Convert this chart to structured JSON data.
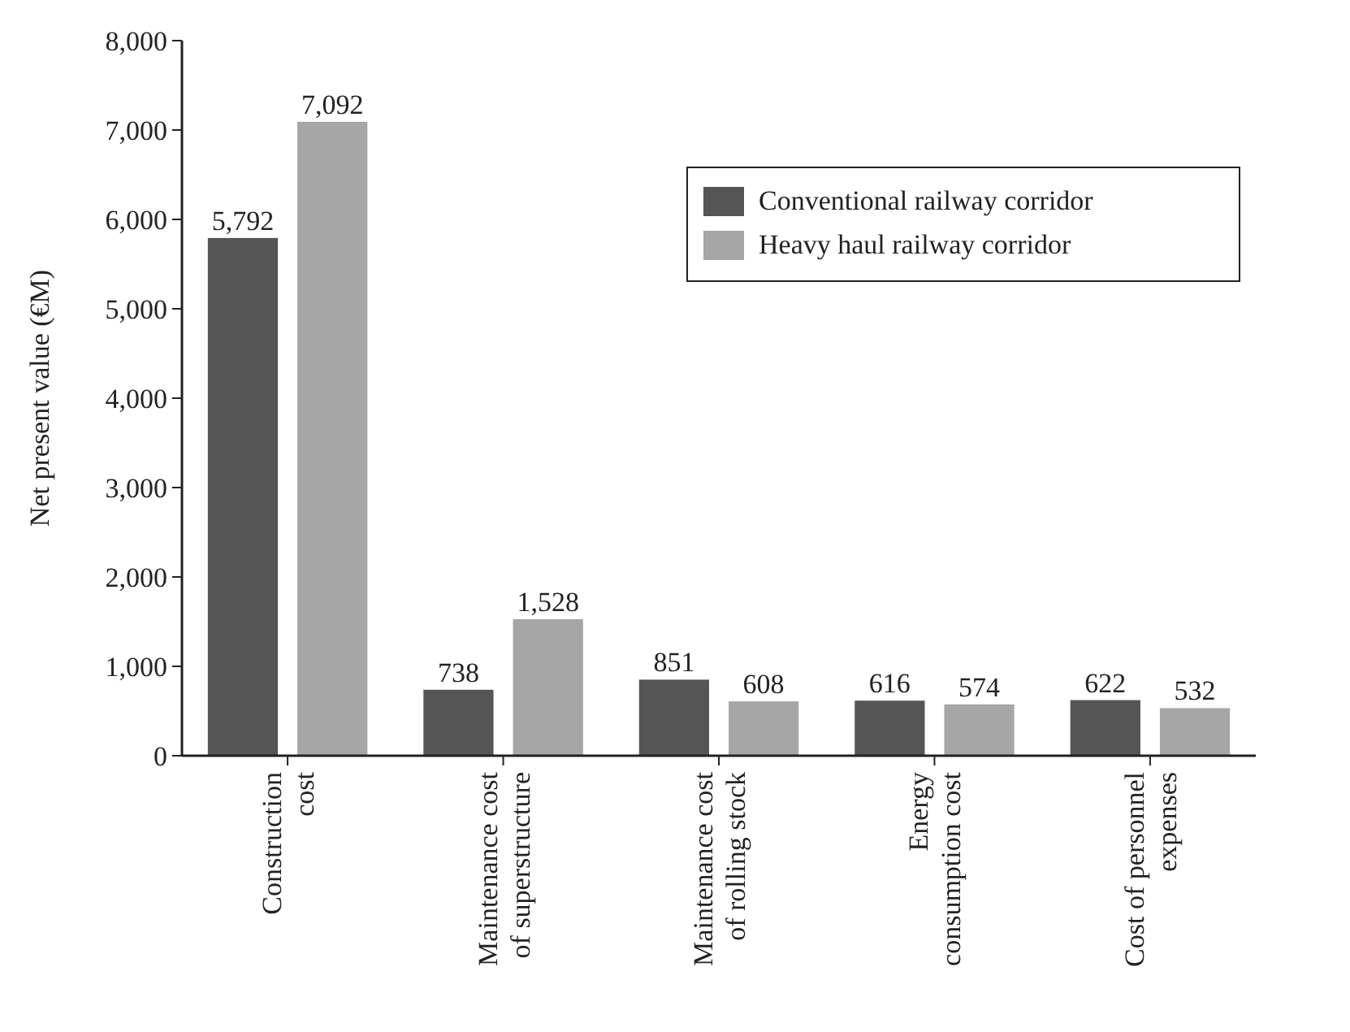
{
  "chart_data": {
    "type": "bar",
    "ylabel": "Net present value (€M)",
    "categories": [
      "Construction\ncost",
      "Maintenance cost\nof superstructure",
      "Maintenance cost\nof rolling stock",
      "Energy\nconsumption cost",
      "Cost of personnel\nexpenses"
    ],
    "series": [
      {
        "name": "Conventional railway corridor",
        "color": "#555555",
        "values": [
          5792,
          738,
          851,
          616,
          622
        ],
        "value_labels": [
          "5,792",
          "738",
          "851",
          "616",
          "622"
        ]
      },
      {
        "name": "Heavy haul railway corridor",
        "color": "#a6a6a6",
        "values": [
          7092,
          1528,
          608,
          574,
          532
        ],
        "value_labels": [
          "7,092",
          "1,528",
          "608",
          "574",
          "532"
        ]
      }
    ],
    "ylim": [
      0,
      8000
    ],
    "yticks": [
      0,
      {
        "value": 1000,
        "label": "1,000"
      },
      {
        "value": 2000,
        "label": "2,000"
      },
      {
        "value": 3000,
        "label": "3,000"
      },
      {
        "value": 4000,
        "label": "4,000"
      },
      {
        "value": 5000,
        "label": "5,000"
      },
      {
        "value": 6000,
        "label": "6,000"
      },
      {
        "value": 7000,
        "label": "7,000"
      },
      {
        "value": 8000,
        "label": "8,000"
      }
    ],
    "legend": "top right",
    "grid": false
  }
}
